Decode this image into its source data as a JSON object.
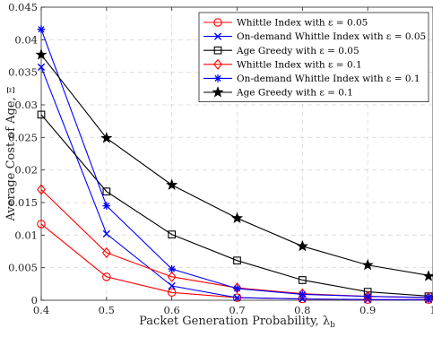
{
  "chart_data": {
    "type": "line",
    "title": "",
    "xlabel": "Packet Generation Probability, λ",
    "xlabel_sub": "b",
    "ylabel": "Average Cost of Age,",
    "ylabel_symbol": "Ξ",
    "xlim": [
      0.4,
      1
    ],
    "ylim": [
      0,
      0.045
    ],
    "xticks": [
      "0.4",
      "0.5",
      "0.6",
      "0.7",
      "0.8",
      "0.9",
      "1"
    ],
    "yticks": [
      "0",
      "0.005",
      "0.01",
      "0.015",
      "0.02",
      "0.025",
      "0.03",
      "0.035",
      "0.04",
      "0.045"
    ],
    "grid": true,
    "legend_position": "top-right",
    "x": [
      0.4,
      0.5,
      0.6,
      0.7,
      0.8,
      0.9,
      1.0
    ],
    "series": [
      {
        "name": "Whittle Index with ε = 0.05",
        "color": "#ff0000",
        "marker": "circle",
        "values": [
          0.0117,
          0.0036,
          0.0012,
          0.0004,
          0.0002,
          0.0001,
          0.0001
        ]
      },
      {
        "name": "On-demand Whittle Index with ε = 0.05",
        "color": "#0000ff",
        "marker": "x",
        "values": [
          0.0358,
          0.0102,
          0.0022,
          0.0004,
          0.0002,
          0.0001,
          0.0001
        ]
      },
      {
        "name": "Age Greedy with ε = 0.05",
        "color": "#000000",
        "marker": "square",
        "values": [
          0.0285,
          0.0167,
          0.0101,
          0.0061,
          0.0031,
          0.0013,
          0.0006
        ]
      },
      {
        "name": "Whittle Index with ε = 0.1",
        "color": "#ff0000",
        "marker": "diamond",
        "values": [
          0.017,
          0.0073,
          0.0036,
          0.0019,
          0.001,
          0.0006,
          0.0004
        ]
      },
      {
        "name": "On-demand Whittle Index with ε = 0.1",
        "color": "#0000ff",
        "marker": "asterisk",
        "values": [
          0.0416,
          0.0145,
          0.0048,
          0.0018,
          0.0009,
          0.0006,
          0.0004
        ]
      },
      {
        "name": "Age Greedy with ε = 0.1",
        "color": "#000000",
        "marker": "star",
        "values": [
          0.0377,
          0.0249,
          0.0177,
          0.0126,
          0.0083,
          0.0054,
          0.0037
        ]
      }
    ]
  }
}
